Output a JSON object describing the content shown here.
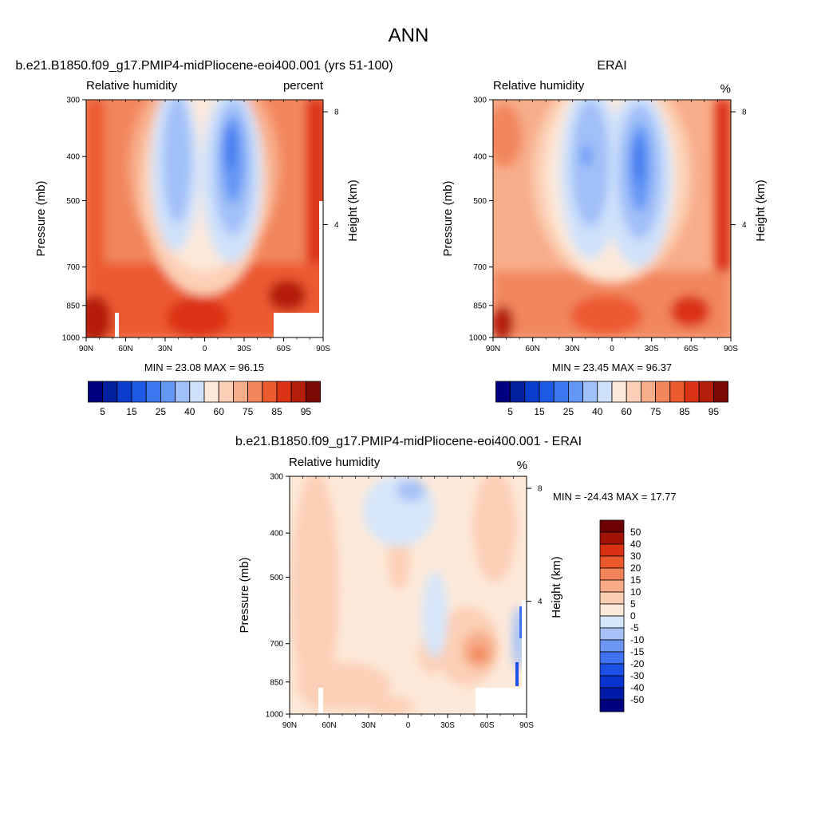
{
  "page_title": "ANN",
  "colors": {
    "levels_main": [
      "#000080",
      "#0020a0",
      "#0a3ccd",
      "#1e5ae6",
      "#3c78f0",
      "#6496f5",
      "#a0c0f8",
      "#cfe2fb",
      "#fde9d9",
      "#fcd0b6",
      "#f7ad8a",
      "#f2865d",
      "#ec5a30",
      "#db3316",
      "#b51e0a",
      "#7c0a04"
    ],
    "levels_diff": [
      "#000080",
      "#001aa8",
      "#0a34d0",
      "#1c50e6",
      "#3f72f0",
      "#6e96f3",
      "#a6c2f7",
      "#d6e6fa",
      "#fde9d9",
      "#fbceb2",
      "#f7ab86",
      "#f28358",
      "#eb582c",
      "#d83114",
      "#a21306",
      "#6d0000"
    ]
  },
  "chart_data": [
    {
      "type": "contour",
      "id": "model",
      "title": "b.e21.B1850.f09_g17.PMIP4-midPliocene-eoi400.001 (yrs 51-100)",
      "left_label": "Relative humidity",
      "right_label": "percent",
      "ylabel": "Pressure (mb)",
      "y2label": "Height (km)",
      "x_ticks": [
        "90N",
        "60N",
        "30N",
        "0",
        "30S",
        "60S",
        "90S"
      ],
      "y_ticks": [
        300,
        400,
        500,
        700,
        850,
        1000
      ],
      "y2_ticks": [
        8,
        4
      ],
      "min_max_text": "MIN =  23.08  MAX =  96.15",
      "colorbar_labels": [
        "5",
        "15",
        "25",
        "40",
        "60",
        "75",
        "85",
        "95"
      ]
    },
    {
      "type": "contour",
      "id": "obs",
      "title": "ERAI",
      "left_label": "Relative humidity",
      "right_label": "%",
      "ylabel": "Pressure (mb)",
      "y2label": "Height (km)",
      "x_ticks": [
        "90N",
        "60N",
        "30N",
        "0",
        "30S",
        "60S",
        "90S"
      ],
      "y_ticks": [
        300,
        400,
        500,
        700,
        850,
        1000
      ],
      "y2_ticks": [
        8,
        4
      ],
      "min_max_text": "MIN =  23.45  MAX =  96.37",
      "colorbar_labels": [
        "5",
        "15",
        "25",
        "40",
        "60",
        "75",
        "85",
        "95"
      ]
    },
    {
      "type": "contour",
      "id": "diff",
      "title": "b.e21.B1850.f09_g17.PMIP4-midPliocene-eoi400.001 - ERAI",
      "left_label": "Relative humidity",
      "right_label": "%",
      "ylabel": "Pressure (mb)",
      "y2label": "Height (km)",
      "x_ticks": [
        "90N",
        "60N",
        "30N",
        "0",
        "30S",
        "60S",
        "90S"
      ],
      "y_ticks": [
        300,
        400,
        500,
        700,
        850,
        1000
      ],
      "y2_ticks": [
        8,
        4
      ],
      "min_max_text": "MIN = -24.43  MAX =  17.77",
      "colorbar_labels": [
        "50",
        "40",
        "30",
        "20",
        "15",
        "10",
        "5",
        "0",
        "-5",
        "-10",
        "-15",
        "-20",
        "-30",
        "-40",
        "-50"
      ]
    }
  ]
}
